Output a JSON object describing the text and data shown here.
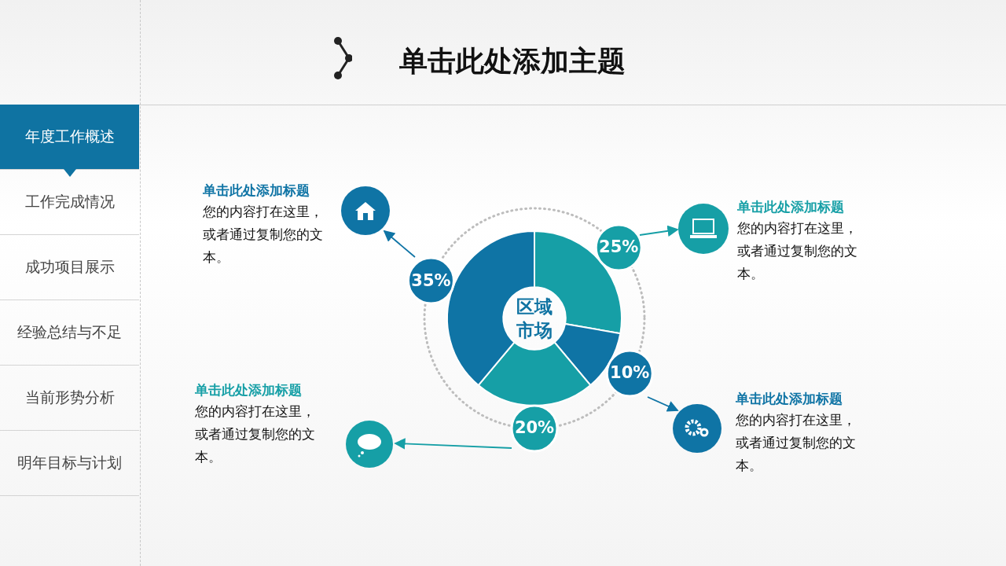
{
  "chart_data": {
    "type": "donut",
    "title": "单击此处添加主题",
    "categories": [
      null,
      null,
      null,
      null
    ],
    "values": [
      25,
      10,
      20,
      35
    ],
    "value_labels": [
      "25%",
      "10%",
      "20%",
      "35%"
    ],
    "colors": [
      "#169fa6",
      "#0f74a5",
      "#169fa6",
      "#0f74a5"
    ],
    "annotations": [
      "年度工作概述",
      "工作完成情况",
      "成功项目展示",
      "经验总结与不足",
      "当前形势分析",
      "明年目标与计划",
      "区域市场",
      "单击此处添加标题",
      "您的内容打在这里，或者通过复制您的文本。",
      "单击此处添加标题",
      "您的内容打在这里，或者通过复制您的文本。",
      "单击此处添加标题",
      "您的内容打在这里，或者通过复制您的文本。",
      "单击此处添加标题",
      "您的内容打在这里，或者通过复制您的文本。"
    ]
  }
}
